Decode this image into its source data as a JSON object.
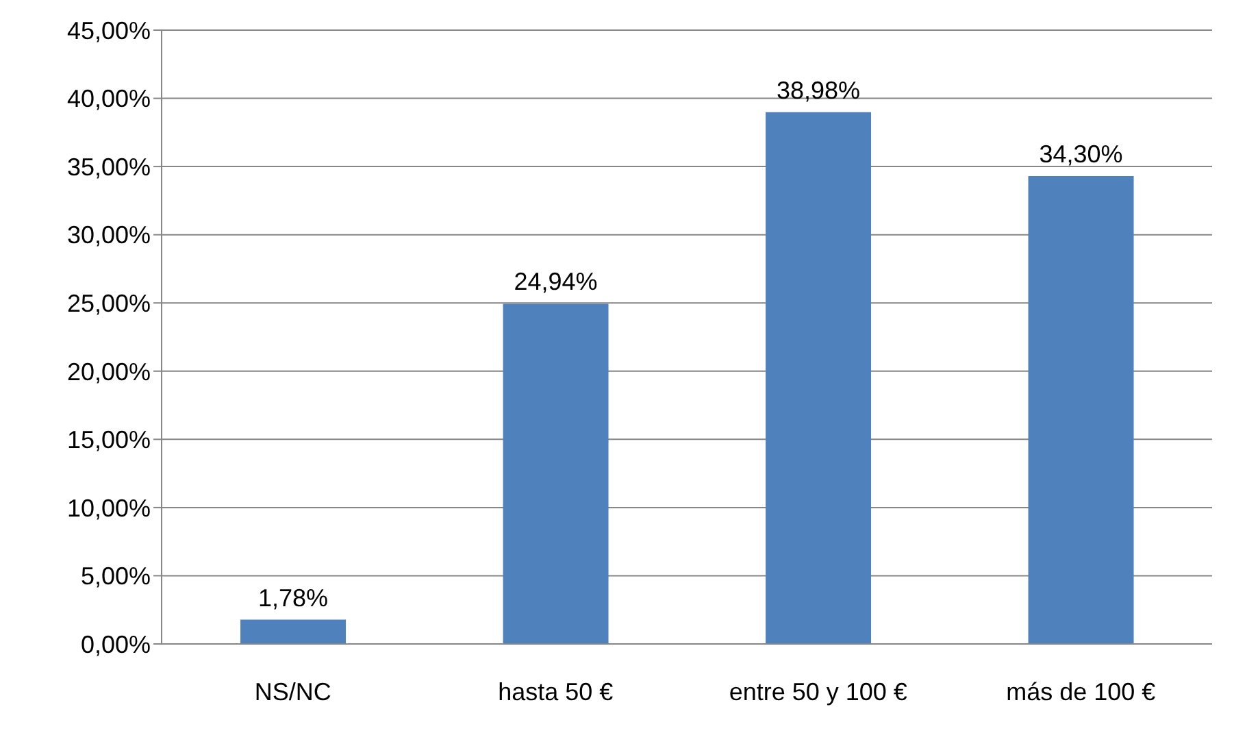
{
  "chart_data": {
    "type": "bar",
    "categories": [
      "NS/NC",
      "hasta 50 €",
      "entre 50 y 100 €",
      "más de 100 €"
    ],
    "values": [
      1.78,
      24.94,
      38.98,
      34.3
    ],
    "value_labels": [
      "1,78%",
      "24,94%",
      "38,98%",
      "34,30%"
    ],
    "color": "#4f81bd",
    "ylim": [
      0,
      45
    ],
    "yticks": [
      {
        "value": 0,
        "label": "0,00%"
      },
      {
        "value": 5,
        "label": "5,00%"
      },
      {
        "value": 10,
        "label": "10,00%"
      },
      {
        "value": 15,
        "label": "15,00%"
      },
      {
        "value": 20,
        "label": "20,00%"
      },
      {
        "value": 25,
        "label": "25,00%"
      },
      {
        "value": 30,
        "label": "30,00%"
      },
      {
        "value": 35,
        "label": "35,00%"
      },
      {
        "value": 40,
        "label": "40,00%"
      },
      {
        "value": 45,
        "label": "45,00%"
      }
    ],
    "grid": "y"
  }
}
